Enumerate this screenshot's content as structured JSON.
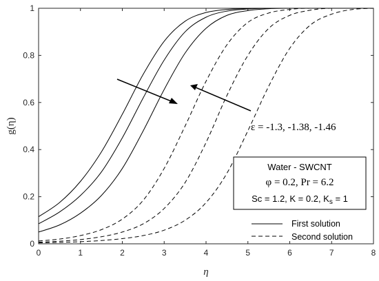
{
  "chart_data": {
    "type": "line",
    "title": "",
    "xlabel": "η",
    "ylabel": "g(η)",
    "xlim": [
      0,
      8
    ],
    "ylim": [
      0,
      1
    ],
    "xticks": [
      "0",
      "1",
      "2",
      "3",
      "4",
      "5",
      "6",
      "7",
      "8"
    ],
    "yticks": [
      "0",
      "0.2",
      "0.4",
      "0.6",
      "0.8",
      "1"
    ],
    "grid": false,
    "series": [
      {
        "name": "First solution",
        "param": "-1.3",
        "style": "solid",
        "x": [
          0,
          0.5,
          1,
          1.5,
          2,
          2.5,
          3,
          3.5,
          4,
          4.5,
          5,
          5.5,
          6,
          8
        ],
        "y": [
          0.115,
          0.175,
          0.265,
          0.39,
          0.55,
          0.72,
          0.86,
          0.945,
          0.982,
          0.995,
          0.999,
          1.0,
          1.0,
          1.0
        ]
      },
      {
        "name": "First solution",
        "param": "-1.38",
        "style": "solid",
        "x": [
          0,
          0.5,
          1,
          1.5,
          2,
          2.5,
          3,
          3.5,
          4,
          4.5,
          5,
          5.5,
          6,
          8
        ],
        "y": [
          0.085,
          0.135,
          0.205,
          0.305,
          0.45,
          0.62,
          0.78,
          0.9,
          0.962,
          0.988,
          0.997,
          1.0,
          1.0,
          1.0
        ]
      },
      {
        "name": "First solution",
        "param": "-1.46",
        "style": "solid",
        "x": [
          0,
          0.5,
          1,
          1.5,
          2,
          2.5,
          3,
          3.5,
          4,
          4.5,
          5,
          5.5,
          6,
          8
        ],
        "y": [
          0.05,
          0.08,
          0.13,
          0.205,
          0.32,
          0.48,
          0.655,
          0.81,
          0.915,
          0.97,
          0.99,
          0.998,
          1.0,
          1.0
        ]
      },
      {
        "name": "Second solution",
        "param": "-1.3",
        "style": "dashed",
        "x": [
          0,
          0.5,
          1,
          1.5,
          2,
          2.5,
          3,
          3.5,
          4,
          4.5,
          5,
          5.5,
          6,
          6.5,
          8
        ],
        "y": [
          0.012,
          0.02,
          0.035,
          0.06,
          0.105,
          0.185,
          0.32,
          0.5,
          0.69,
          0.845,
          0.94,
          0.98,
          0.995,
          1.0,
          1.0
        ]
      },
      {
        "name": "Second solution",
        "param": "-1.38",
        "style": "dashed",
        "x": [
          0,
          0.5,
          1,
          1.5,
          2,
          2.5,
          3,
          3.5,
          4,
          4.5,
          5,
          5.5,
          6,
          6.5,
          7,
          8
        ],
        "y": [
          0.007,
          0.011,
          0.018,
          0.03,
          0.05,
          0.085,
          0.15,
          0.26,
          0.43,
          0.63,
          0.8,
          0.915,
          0.97,
          0.992,
          1.0,
          1.0
        ]
      },
      {
        "name": "Second solution",
        "param": "-1.46",
        "style": "dashed",
        "x": [
          0,
          0.5,
          1,
          1.5,
          2,
          2.5,
          3,
          3.5,
          4,
          4.5,
          5,
          5.5,
          6,
          6.5,
          7,
          7.5,
          8
        ],
        "y": [
          0.004,
          0.006,
          0.009,
          0.014,
          0.022,
          0.035,
          0.058,
          0.1,
          0.175,
          0.3,
          0.48,
          0.67,
          0.83,
          0.93,
          0.975,
          0.995,
          1.0
        ]
      }
    ],
    "legend": {
      "placement": "bottom-right",
      "entries": [
        {
          "label": "First solution",
          "style": "solid"
        },
        {
          "label": "Second solution",
          "style": "dashed"
        }
      ]
    },
    "annotations": {
      "epsilon_label": "ε = -1.3, -1.38, -1.46",
      "info_box": {
        "line1": "Water - SWCNT",
        "line2": "φ = 0.2, Pr = 6.2",
        "line3_prefix": "Sc = 1.2, K = 0.2, K",
        "line3_subscript": "s",
        "line3_suffix": " = 1"
      }
    }
  }
}
